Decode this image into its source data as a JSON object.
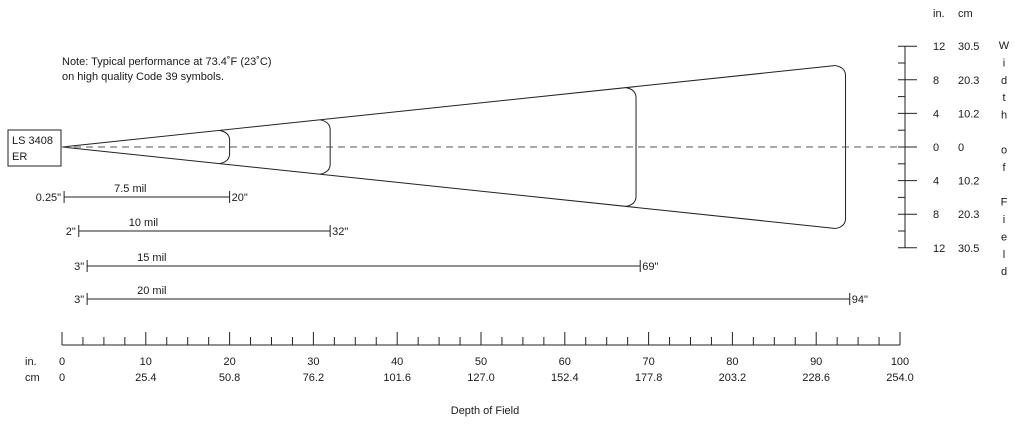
{
  "note": {
    "line1": "Note: Typical performance at 73.4˚F (23˚C)",
    "line2": "on high quality Code 39 symbols."
  },
  "scanner": {
    "line1": "LS 3408",
    "line2": "ER"
  },
  "right_scale": {
    "unit_in": "in.",
    "unit_cm": "cm",
    "ticks": [
      {
        "in": "12",
        "cm": "30.5",
        "pos": 12
      },
      {
        "in": "8",
        "cm": "20.3",
        "pos": 8
      },
      {
        "in": "4",
        "cm": "10.2",
        "pos": 4
      },
      {
        "in": "0",
        "cm": "0",
        "pos": 0
      },
      {
        "in": "4",
        "cm": "10.2",
        "pos": -4
      },
      {
        "in": "8",
        "cm": "20.3",
        "pos": -8
      },
      {
        "in": "12",
        "cm": "30.5",
        "pos": -12
      }
    ],
    "vertical_label": [
      "W",
      "i",
      "d",
      "t",
      "h",
      "",
      "o",
      "f",
      "",
      "F",
      "i",
      "e",
      "l",
      "d"
    ]
  },
  "bottom_axis": {
    "unit_in": "in.",
    "unit_cm": "cm",
    "title": "Depth of Field",
    "ticks": [
      {
        "in": "0",
        "cm": "0",
        "value": 0
      },
      {
        "in": "10",
        "cm": "25.4",
        "value": 10
      },
      {
        "in": "20",
        "cm": "50.8",
        "value": 20
      },
      {
        "in": "30",
        "cm": "76.2",
        "value": 30
      },
      {
        "in": "40",
        "cm": "101.6",
        "value": 40
      },
      {
        "in": "50",
        "cm": "127.0",
        "value": 50
      },
      {
        "in": "60",
        "cm": "152.4",
        "value": 60
      },
      {
        "in": "70",
        "cm": "177.8",
        "value": 70
      },
      {
        "in": "80",
        "cm": "203.2",
        "value": 80
      },
      {
        "in": "90",
        "cm": "228.6",
        "value": 90
      },
      {
        "in": "100",
        "cm": "254.0",
        "value": 100
      }
    ]
  },
  "ranges": [
    {
      "label": "7.5 mil",
      "start": 0.25,
      "end": 20,
      "start_label": "0.25\"",
      "end_label": "20\""
    },
    {
      "label": "10 mil",
      "start": 2,
      "end": 32,
      "start_label": "2\"",
      "end_label": "32\""
    },
    {
      "label": "15 mil",
      "start": 3,
      "end": 69,
      "start_label": "3\"",
      "end_label": "69\""
    },
    {
      "label": "20 mil",
      "start": 3,
      "end": 94,
      "start_label": "3\"",
      "end_label": "94\""
    }
  ],
  "beam": {
    "arcs": [
      {
        "depth": 20,
        "width": 2.2
      },
      {
        "depth": 32,
        "width": 3.6
      },
      {
        "depth": 68.5,
        "width": 8.2
      },
      {
        "depth": 93.5,
        "width": 11.0
      }
    ]
  }
}
